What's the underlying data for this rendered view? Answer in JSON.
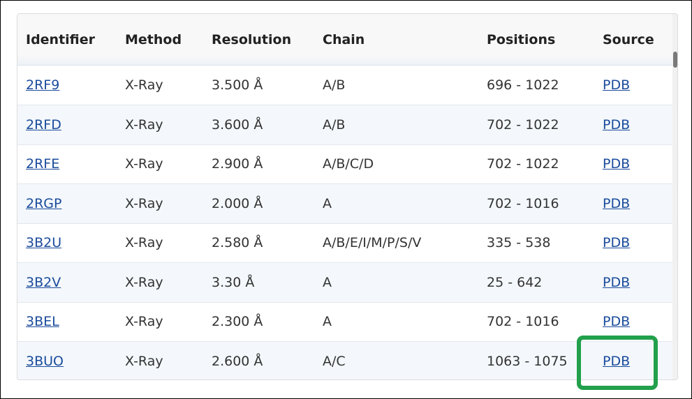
{
  "table": {
    "headers": [
      "Identifier",
      "Method",
      "Resolution",
      "Chain",
      "Positions",
      "Source"
    ],
    "rows": [
      [
        "2RF9",
        "X-Ray",
        "3.500 Å",
        "A/B",
        "696 - 1022",
        "PDB"
      ],
      [
        "2RFD",
        "X-Ray",
        "3.600 Å",
        "A/B",
        "702 - 1022",
        "PDB"
      ],
      [
        "2RFE",
        "X-Ray",
        "2.900 Å",
        "A/B/C/D",
        "702 - 1022",
        "PDB"
      ],
      [
        "2RGP",
        "X-Ray",
        "2.000 Å",
        "A",
        "702 - 1016",
        "PDB"
      ],
      [
        "3B2U",
        "X-Ray",
        "2.580 Å",
        "A/B/E/I/M/P/S/V",
        "335 - 538",
        "PDB"
      ],
      [
        "3B2V",
        "X-Ray",
        "3.30 Å",
        "A",
        "25 - 642",
        "PDB"
      ],
      [
        "3BEL",
        "X-Ray",
        "2.300 Å",
        "A",
        "702 - 1016",
        "PDB"
      ],
      [
        "3BUO",
        "X-Ray",
        "2.600 Å",
        "A/C",
        "1063 - 1075",
        "PDB"
      ]
    ]
  }
}
